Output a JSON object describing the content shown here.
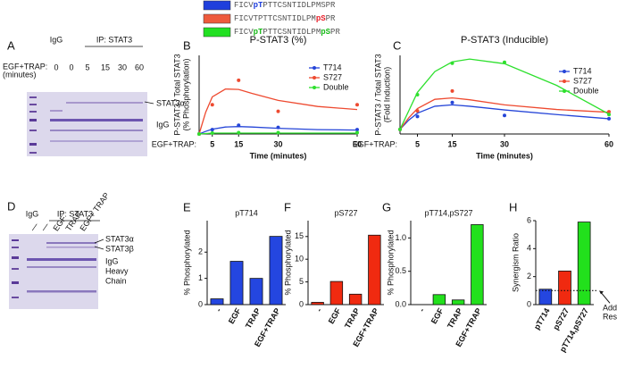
{
  "peptides": [
    {
      "color": "#1f3fdc",
      "parts": [
        {
          "text": "FICV"
        },
        {
          "text": "pT",
          "color": "#1f3fdc"
        },
        {
          "text": "PTTCSNTIDLPMSPR"
        }
      ]
    },
    {
      "color": "#ee5a3c",
      "parts": [
        {
          "text": "FICVTPTTCSNTIDLPM"
        },
        {
          "text": "pS",
          "color": "#e8202a"
        },
        {
          "text": "PR"
        }
      ]
    },
    {
      "color": "#22e022",
      "parts": [
        {
          "text": "FICV"
        },
        {
          "text": "pT",
          "color": "#18b818"
        },
        {
          "text": "PTTCSNTIDLPM"
        },
        {
          "text": "pS",
          "color": "#18b818"
        },
        {
          "text": "PR"
        }
      ]
    }
  ],
  "gels": [
    {
      "panel": "A",
      "control": "IgG",
      "ip": "IP: STAT3",
      "treatment": [
        "EGF+TRAP:",
        "(minutes)"
      ],
      "lanes": [
        "0",
        "0",
        "5",
        "15",
        "30",
        "60"
      ],
      "bands": [
        [
          "STAT3α"
        ],
        [
          "IgG"
        ]
      ]
    },
    {
      "panel": "D",
      "control": "IgG",
      "ip": "IP: STAT3",
      "lanes": [
        "—",
        "—",
        "EGF",
        "TRAP",
        "EGF+ TRAP"
      ],
      "bands": [
        [
          "STAT3α"
        ],
        [
          "STAT3β"
        ],
        [
          "IgG",
          "Heavy",
          "Chain"
        ]
      ]
    }
  ],
  "chart_data": [
    {
      "type": "line",
      "panel": "B",
      "title": "P-STAT3 (%)",
      "y_label": [
        "P-STAT3 / Total STAT3",
        "(% Phosphorylation)"
      ],
      "x_prefix": "EGF+TRAP:",
      "x_label": "Time (minutes)",
      "x": [
        0,
        5,
        15,
        30,
        60
      ],
      "xlim": [
        0,
        60
      ],
      "xticks": [
        5,
        15,
        30,
        60
      ],
      "ylim": [
        0,
        18
      ],
      "fit_x": [
        0,
        2.5,
        5,
        10,
        15,
        20,
        30,
        45,
        60
      ],
      "series": [
        {
          "name": "T714",
          "color": "#2545d8",
          "values": [
            0,
            1,
            2,
            1.5,
            1
          ],
          "fit": [
            0,
            0.6,
            1.1,
            1.6,
            1.7,
            1.6,
            1.3,
            1,
            0.9
          ]
        },
        {
          "name": "S727",
          "color": "#ee4a30",
          "values": [
            0,
            6.7,
            12.3,
            5.2,
            6.7
          ],
          "fit": [
            0,
            5,
            8.5,
            10.3,
            10.2,
            9.3,
            7.7,
            6.3,
            5.6
          ]
        },
        {
          "name": "Double",
          "color": "#2ee02e",
          "values": [
            0,
            0.2,
            0.3,
            0.3,
            0.3
          ],
          "fit": [
            0,
            0.1,
            0.2,
            0.2,
            0.2,
            0.2,
            0.2,
            0.2,
            0.2
          ]
        }
      ]
    },
    {
      "type": "line",
      "panel": "C",
      "title": "P-STAT3 (Inducible)",
      "y_label": [
        "P-STAT3 / Total STAT3",
        "(Fold Induction)"
      ],
      "x_prefix": "EGF+TRAP:",
      "x_label": "Time (minutes)",
      "x": [
        0,
        5,
        15,
        30,
        60
      ],
      "xlim": [
        0,
        60
      ],
      "xticks": [
        5,
        15,
        30,
        60
      ],
      "ylim": [
        0,
        17
      ],
      "fit_x": [
        0,
        2.5,
        5,
        10,
        15,
        20,
        30,
        45,
        60
      ],
      "series": [
        {
          "name": "T714",
          "color": "#2545d8",
          "values": [
            1,
            3.8,
            6.8,
            4,
            3.3
          ],
          "fit": [
            1,
            3,
            4.5,
            6,
            6.3,
            6,
            5.2,
            4.2,
            3.3
          ]
        },
        {
          "name": "S727",
          "color": "#ee4a30",
          "values": [
            1,
            5,
            9.3,
            null,
            4.8
          ],
          "fit": [
            1,
            3.5,
            5.5,
            7.5,
            7.8,
            7.4,
            6.3,
            5.3,
            4.7
          ]
        },
        {
          "name": "Double",
          "color": "#2ee02e",
          "values": [
            1,
            8.5,
            15.3,
            15.5,
            4.2
          ],
          "fit": [
            1,
            5,
            9,
            13.5,
            15.6,
            16.2,
            15.2,
            10.5,
            4.3
          ]
        }
      ]
    },
    {
      "type": "bar",
      "panel": "E",
      "title": "pT714",
      "y_label": "% Phosphorylated",
      "categories": [
        "-",
        "EGF",
        "TRAP",
        "EGF+TRAP"
      ],
      "values": [
        0.22,
        1.65,
        1,
        2.6
      ],
      "color": "#2446e0",
      "ylim": [
        0,
        3.2
      ],
      "yticks": [
        0,
        1,
        2
      ]
    },
    {
      "type": "bar",
      "panel": "F",
      "title": "pS727",
      "y_label": "% Phosphorylated",
      "categories": [
        "-",
        "EGF",
        "TRAP",
        "EGF+TRAP"
      ],
      "values": [
        0.5,
        5.1,
        2.3,
        15.3
      ],
      "color": "#f02a10",
      "ylim": [
        0,
        18.5
      ],
      "yticks": [
        0,
        5,
        10,
        15
      ]
    },
    {
      "type": "bar",
      "panel": "G",
      "title": "pT714,pS727",
      "y_label": "% Phosphorylated",
      "categories": [
        "-",
        "EGF",
        "TRAP",
        "EGF+TRAP"
      ],
      "values": [
        0,
        0.15,
        0.07,
        1.2
      ],
      "color": "#22e01c",
      "ylim": [
        0,
        1.26
      ],
      "yticks": [
        {
          "value": 0,
          "label": "0.0"
        },
        {
          "value": 0.5,
          "label": "0.5"
        },
        {
          "value": 1,
          "label": "1.0"
        }
      ]
    },
    {
      "type": "bar",
      "panel": "H",
      "y_label": "Synergism Ratio",
      "categories": [
        "pT714",
        "pS727",
        "pT714,pS727"
      ],
      "values": [
        1.1,
        2.4,
        5.9
      ],
      "colors": [
        "#2446e0",
        "#f02a10",
        "#22e01c"
      ],
      "ylim": [
        0,
        6
      ],
      "yticks": [
        0,
        2,
        4,
        6
      ],
      "reference_line": 1,
      "annotation": [
        "Additive",
        "Response"
      ]
    }
  ]
}
